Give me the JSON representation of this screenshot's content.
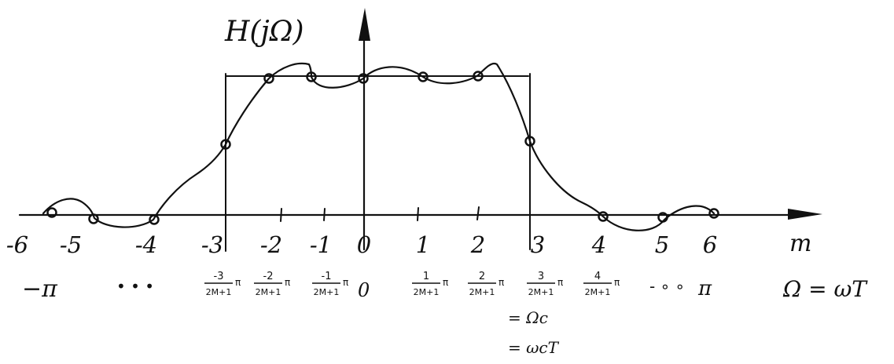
{
  "axis": {
    "y_label": "H(jΩ)",
    "x_label": "m",
    "omega_label": "Ω = ωT"
  },
  "m_ticks": [
    "-6",
    "-5",
    "-4",
    "-3",
    "-2",
    "-1",
    "0",
    "1",
    "2",
    "3",
    "4",
    "5",
    "6"
  ],
  "omega_row": {
    "left_pi": "−π",
    "left_dots": "• • •",
    "right_dots": "- ∘ ∘",
    "right_pi": "π",
    "zero": "0",
    "fractions": [
      {
        "num": "-3",
        "den": "2M+1",
        "suffix": "π"
      },
      {
        "num": "-2",
        "den": "2M+1",
        "suffix": "π"
      },
      {
        "num": "-1",
        "den": "2M+1",
        "suffix": "π"
      },
      {
        "num": "1",
        "den": "2M+1",
        "suffix": "π"
      },
      {
        "num": "2",
        "den": "2M+1",
        "suffix": "π"
      },
      {
        "num": "3",
        "den": "2M+1",
        "suffix": "π"
      },
      {
        "num": "4",
        "den": "2M+1",
        "suffix": "π"
      }
    ]
  },
  "cutoff_notes": [
    "= Ωc",
    "= ωcT"
  ],
  "colors": {
    "ink": "#111111",
    "background": "#ffffff"
  }
}
